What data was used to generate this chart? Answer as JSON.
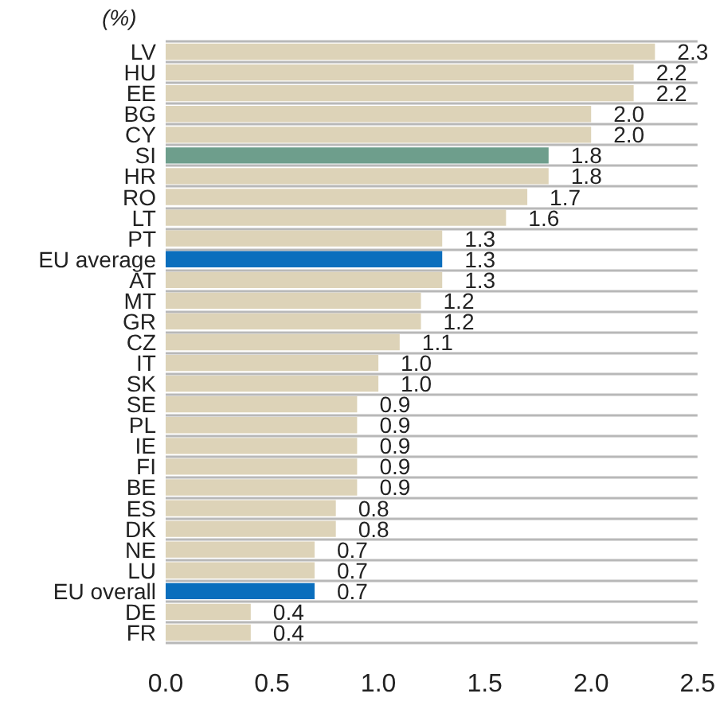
{
  "chart_data": {
    "type": "bar",
    "orientation": "horizontal",
    "annotations": [
      "(%)"
    ],
    "categories": [
      "LV",
      "HU",
      "EE",
      "BG",
      "CY",
      "SI",
      "HR",
      "RO",
      "LT",
      "PT",
      "EU average",
      "AT",
      "MT",
      "GR",
      "CZ",
      "IT",
      "SK",
      "SE",
      "PL",
      "IE",
      "FI",
      "BE",
      "ES",
      "DK",
      "NE",
      "LU",
      "EU overall",
      "DE",
      "FR"
    ],
    "values": [
      2.3,
      2.2,
      2.2,
      2.0,
      2.0,
      1.8,
      1.8,
      1.7,
      1.6,
      1.3,
      1.3,
      1.3,
      1.2,
      1.2,
      1.1,
      1.0,
      1.0,
      0.9,
      0.9,
      0.9,
      0.9,
      0.9,
      0.8,
      0.8,
      0.7,
      0.7,
      0.7,
      0.4,
      0.4
    ],
    "colors": [
      "#ddd3b8",
      "#ddd3b8",
      "#ddd3b8",
      "#ddd3b8",
      "#ddd3b8",
      "#6e9e8c",
      "#ddd3b8",
      "#ddd3b8",
      "#ddd3b8",
      "#ddd3b8",
      "#0a6ebd",
      "#ddd3b8",
      "#ddd3b8",
      "#ddd3b8",
      "#ddd3b8",
      "#ddd3b8",
      "#ddd3b8",
      "#ddd3b8",
      "#ddd3b8",
      "#ddd3b8",
      "#ddd3b8",
      "#ddd3b8",
      "#ddd3b8",
      "#ddd3b8",
      "#ddd3b8",
      "#ddd3b8",
      "#0a6ebd",
      "#ddd3b8",
      "#ddd3b8"
    ],
    "value_labels": [
      "2.3",
      "2.2",
      "2.2",
      "2.0",
      "2.0",
      "1.8",
      "1.8",
      "1.7",
      "1.6",
      "1.3",
      "1.3",
      "1.3",
      "1.2",
      "1.2",
      "1.1",
      "1.0",
      "1.0",
      "0.9",
      "0.9",
      "0.9",
      "0.9",
      "0.9",
      "0.8",
      "0.8",
      "0.7",
      "0.7",
      "0.7",
      "0.4",
      "0.4"
    ],
    "xlim": [
      0,
      2.5
    ],
    "xticks": [
      {
        "value": 0,
        "label": "0.0"
      },
      0.5,
      {
        "value": 1,
        "label": "1.0"
      },
      1.5,
      {
        "value": 2,
        "label": "2.0"
      },
      2.5
    ],
    "grid": "y"
  }
}
